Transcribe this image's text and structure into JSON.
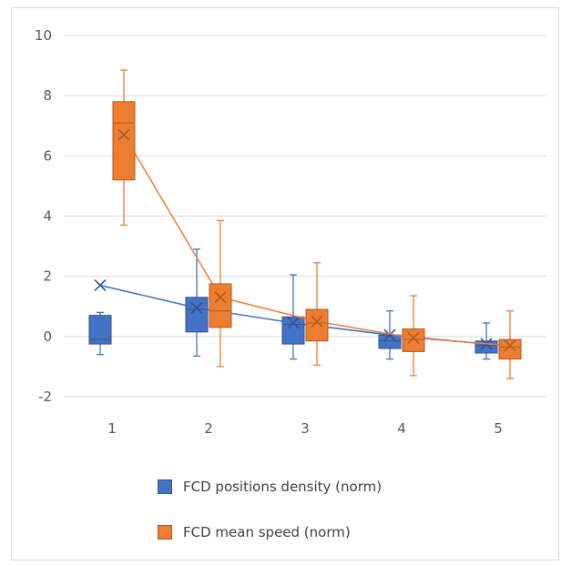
{
  "chart_data": {
    "type": "boxplot",
    "title": "",
    "xlabel": "",
    "ylabel": "",
    "categories": [
      "1",
      "2",
      "3",
      "4",
      "5"
    ],
    "ylim": [
      -2,
      10
    ],
    "yticks": [
      10,
      8,
      6,
      4,
      2,
      0,
      -2
    ],
    "grid": "horizontal",
    "legend_position": "bottom",
    "series": [
      {
        "name": "FCD positions density (norm)",
        "color": "#4472c4",
        "boxes": [
          {
            "min": -0.6,
            "q1": -0.25,
            "median": -0.1,
            "q3": 0.7,
            "max": 0.8,
            "mean": 1.7
          },
          {
            "min": -0.65,
            "q1": 0.15,
            "median": 0.9,
            "q3": 1.3,
            "max": 2.9,
            "mean": 0.95
          },
          {
            "min": -0.75,
            "q1": -0.25,
            "median": 0.4,
            "q3": 0.65,
            "max": 2.05,
            "mean": 0.45
          },
          {
            "min": -0.75,
            "q1": -0.4,
            "median": -0.15,
            "q3": 0.05,
            "max": 0.85,
            "mean": 0.05
          },
          {
            "min": -0.75,
            "q1": -0.55,
            "median": -0.3,
            "q3": -0.15,
            "max": 0.45,
            "mean": -0.25
          }
        ]
      },
      {
        "name": "FCD mean speed (norm)",
        "color": "#ed7d31",
        "boxes": [
          {
            "min": 3.7,
            "q1": 5.2,
            "median": 7.1,
            "q3": 7.8,
            "max": 8.85,
            "mean": 6.7
          },
          {
            "min": -1.0,
            "q1": 0.3,
            "median": 0.85,
            "q3": 1.75,
            "max": 3.85,
            "mean": 1.3
          },
          {
            "min": -0.95,
            "q1": -0.15,
            "median": 0.45,
            "q3": 0.9,
            "max": 2.45,
            "mean": 0.5
          },
          {
            "min": -1.3,
            "q1": -0.5,
            "median": -0.1,
            "q3": 0.25,
            "max": 1.35,
            "mean": -0.05
          },
          {
            "min": -1.4,
            "q1": -0.75,
            "median": -0.35,
            "q3": -0.1,
            "max": 0.85,
            "mean": -0.3
          }
        ]
      }
    ]
  }
}
